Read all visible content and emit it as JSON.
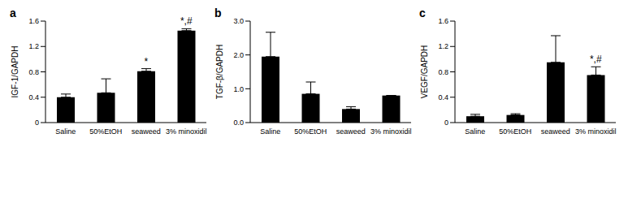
{
  "chart_data": [
    {
      "type": "bar",
      "title": "a",
      "y_label": "IGF-1/GAPDH",
      "categories": [
        "Saline",
        "50%EtOH",
        "seaweed",
        "3% minoxidil"
      ],
      "values": [
        0.4,
        0.47,
        0.81,
        1.45
      ],
      "error": [
        0.05,
        0.22,
        0.04,
        0.03
      ],
      "annotations": [
        {
          "category": "seaweed",
          "text": "*"
        },
        {
          "category": "3% minoxidil",
          "text": "*,#"
        }
      ],
      "color": "#000000",
      "ylim": [
        0,
        1.6
      ],
      "yticks": [
        0,
        0.4,
        0.8,
        1.2,
        1.6
      ],
      "grid": false
    },
    {
      "type": "bar",
      "title": "b",
      "y_label": "TGF-β/GAPDH",
      "categories": [
        "Saline",
        "50%EtOH",
        "seaweed",
        "3% minoxidil"
      ],
      "values": [
        1.95,
        0.85,
        0.4,
        0.8
      ],
      "error": [
        0.72,
        0.35,
        0.07,
        0.0
      ],
      "annotations": [],
      "color": "#000000",
      "ylim": [
        0,
        3
      ],
      "yticks": [
        {
          "value": 0,
          "label": "0.0"
        },
        {
          "value": 1,
          "label": "1.0"
        },
        {
          "value": 2,
          "label": "2.0"
        },
        {
          "value": 3,
          "label": "3.0"
        }
      ],
      "grid": false
    },
    {
      "type": "bar",
      "title": "c",
      "y_label": "VEGF/GAPDH",
      "categories": [
        "Saline",
        "50%EtOH",
        "seaweed",
        "3% minoxidil"
      ],
      "values": [
        0.1,
        0.12,
        0.95,
        0.75
      ],
      "error": [
        0.03,
        0.02,
        0.42,
        0.13
      ],
      "annotations": [
        {
          "category": "3% minoxidil",
          "text": "*,#"
        }
      ],
      "color": "#000000",
      "ylim": [
        0,
        1.6
      ],
      "yticks": [
        0,
        0.4,
        0.8,
        1.2,
        1.6
      ],
      "grid": false
    }
  ]
}
